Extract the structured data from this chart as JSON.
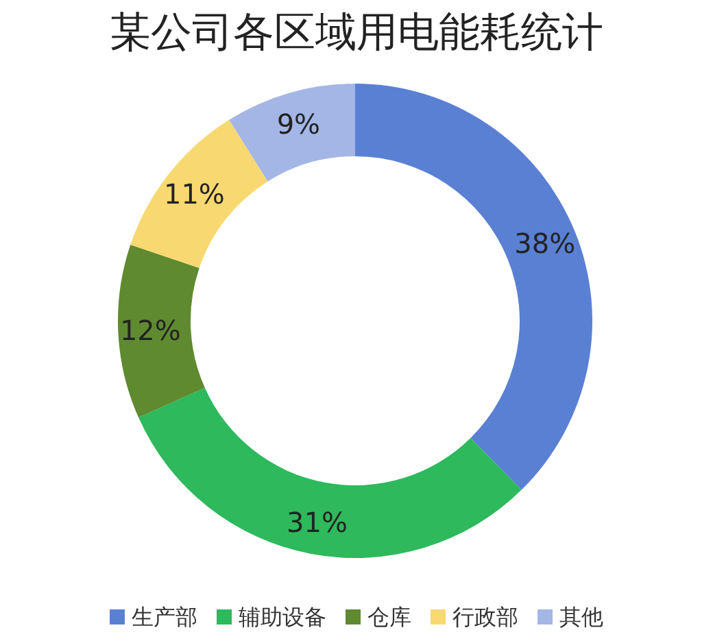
{
  "chart_data": {
    "type": "donut",
    "title": "某公司各区域用电能耗统计",
    "categories": [
      "生产部",
      "辅助设备",
      "仓库",
      "行政部",
      "其他"
    ],
    "values": [
      38,
      31,
      12,
      11,
      9
    ],
    "value_labels": [
      "38%",
      "31%",
      "12%",
      "11%",
      "9%"
    ],
    "colors": [
      "#5a80d4",
      "#2eb95c",
      "#5f8a30",
      "#f8d870",
      "#a4b6e6"
    ],
    "legend": "bottom"
  }
}
